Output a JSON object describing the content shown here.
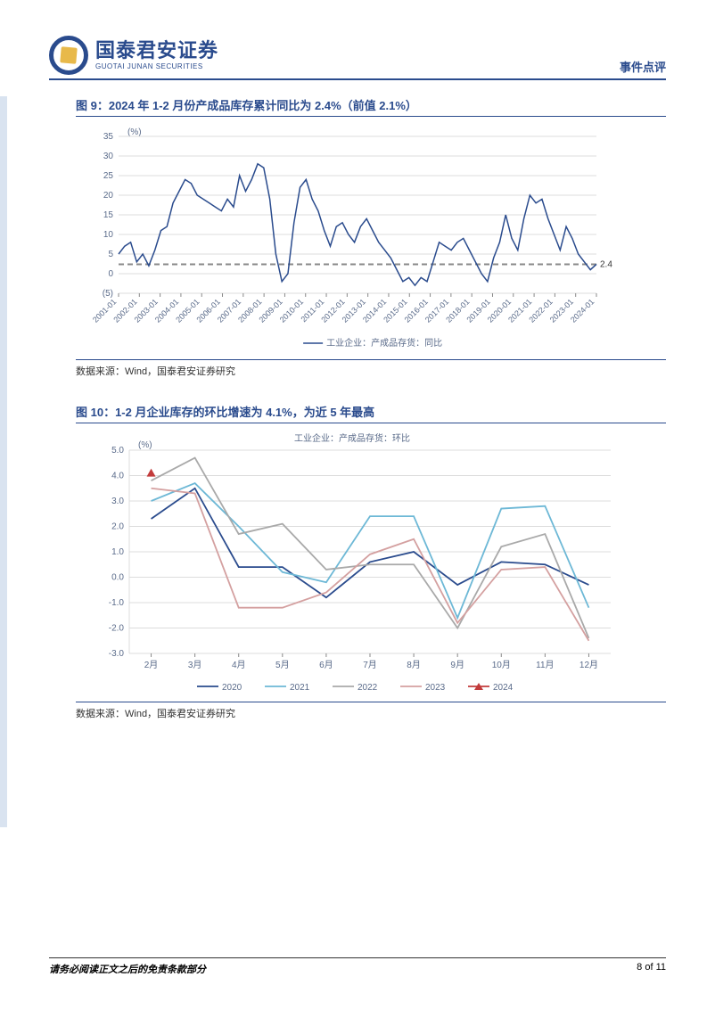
{
  "header": {
    "company_cn": "国泰君安证券",
    "company_en": "GUOTAI JUNAN SECURITIES",
    "doc_tag": "事件点评"
  },
  "chart9": {
    "title": "图 9：2024 年 1-2 月份产成品库存累计同比为 2.4%（前值 2.1%）",
    "type": "line",
    "y_unit": "(%)",
    "ylim": [
      -5,
      35
    ],
    "yticks": [
      -5,
      0,
      5,
      10,
      15,
      20,
      25,
      30,
      35
    ],
    "ytick_labels": [
      "(5)",
      "0",
      "5",
      "10",
      "15",
      "20",
      "25",
      "30",
      "35"
    ],
    "x_categories": [
      "2001-01",
      "2002-01",
      "2003-01",
      "2004-01",
      "2005-01",
      "2006-01",
      "2007-01",
      "2008-01",
      "2009-01",
      "2010-01",
      "2011-01",
      "2012-01",
      "2013-01",
      "2014-01",
      "2015-01",
      "2016-01",
      "2017-01",
      "2018-01",
      "2019-01",
      "2020-01",
      "2021-01",
      "2022-01",
      "2023-01",
      "2024-01"
    ],
    "series_name": "工业企业：产成品存货：同比",
    "line_color": "#2a4b8d",
    "grid_color": "#dcdcdc",
    "ref_line_color": "#888888",
    "ref_line_y": 2.4,
    "end_value_label": "2.4",
    "background_color": "#ffffff",
    "values": [
      5,
      7,
      8,
      3,
      5,
      2,
      6,
      11,
      12,
      18,
      21,
      24,
      23,
      20,
      19,
      18,
      17,
      16,
      19,
      17,
      25,
      21,
      24,
      28,
      27,
      19,
      5,
      -2,
      0,
      13,
      22,
      24,
      19,
      16,
      11,
      7,
      12,
      13,
      10,
      8,
      12,
      14,
      11,
      8,
      6,
      4,
      1,
      -2,
      -1,
      -3,
      -1,
      -2,
      3,
      8,
      7,
      6,
      8,
      9,
      6,
      3,
      0,
      -2,
      4,
      8,
      15,
      9,
      6,
      14,
      20,
      18,
      19,
      14,
      10,
      6,
      12,
      9,
      5,
      3,
      1,
      2.4
    ],
    "source": "数据来源：Wind，国泰君安证券研究"
  },
  "chart10": {
    "title": "图 10：1-2 月企业库存的环比增速为 4.1%，为近 5 年最高",
    "type": "line",
    "y_unit": "(%)",
    "chart_legend_title": "工业企业：产成品存货：环比",
    "ylim": [
      -3,
      5
    ],
    "yticks": [
      -3,
      -2,
      -1,
      0,
      1,
      2,
      3,
      4,
      5
    ],
    "ytick_labels": [
      "-3.0",
      "-2.0",
      "-1.0",
      "0.0",
      "1.0",
      "2.0",
      "3.0",
      "4.0",
      "5.0"
    ],
    "x_categories": [
      "2月",
      "3月",
      "4月",
      "5月",
      "6月",
      "7月",
      "8月",
      "9月",
      "10月",
      "11月",
      "12月"
    ],
    "grid_color": "#dcdcdc",
    "background_color": "#ffffff",
    "series": [
      {
        "name": "2020",
        "color": "#2a4b8d",
        "values": [
          2.3,
          3.5,
          0.4,
          0.4,
          -0.8,
          0.6,
          1.0,
          -0.3,
          0.6,
          0.5,
          -0.3
        ]
      },
      {
        "name": "2021",
        "color": "#6db8d6",
        "values": [
          3.0,
          3.7,
          2.0,
          0.2,
          -0.2,
          2.4,
          2.4,
          -1.6,
          2.7,
          2.8,
          -1.2
        ]
      },
      {
        "name": "2022",
        "color": "#a9a9a9",
        "values": [
          3.8,
          4.7,
          1.7,
          2.1,
          0.3,
          0.5,
          0.5,
          -2.0,
          1.2,
          1.7,
          -2.4
        ]
      },
      {
        "name": "2023",
        "color": "#d4a0a0",
        "values": [
          3.5,
          3.3,
          -1.2,
          -1.2,
          -0.6,
          0.9,
          1.5,
          -1.8,
          0.3,
          0.4,
          -2.5
        ]
      },
      {
        "name": "2024",
        "color": "#c23b3b",
        "values": [
          4.1
        ]
      }
    ],
    "source": "数据来源：Wind，国泰君安证券研究"
  },
  "footer": {
    "disclaimer": "请务必阅读正文之后的免责条款部分",
    "page": "8 of 11"
  }
}
